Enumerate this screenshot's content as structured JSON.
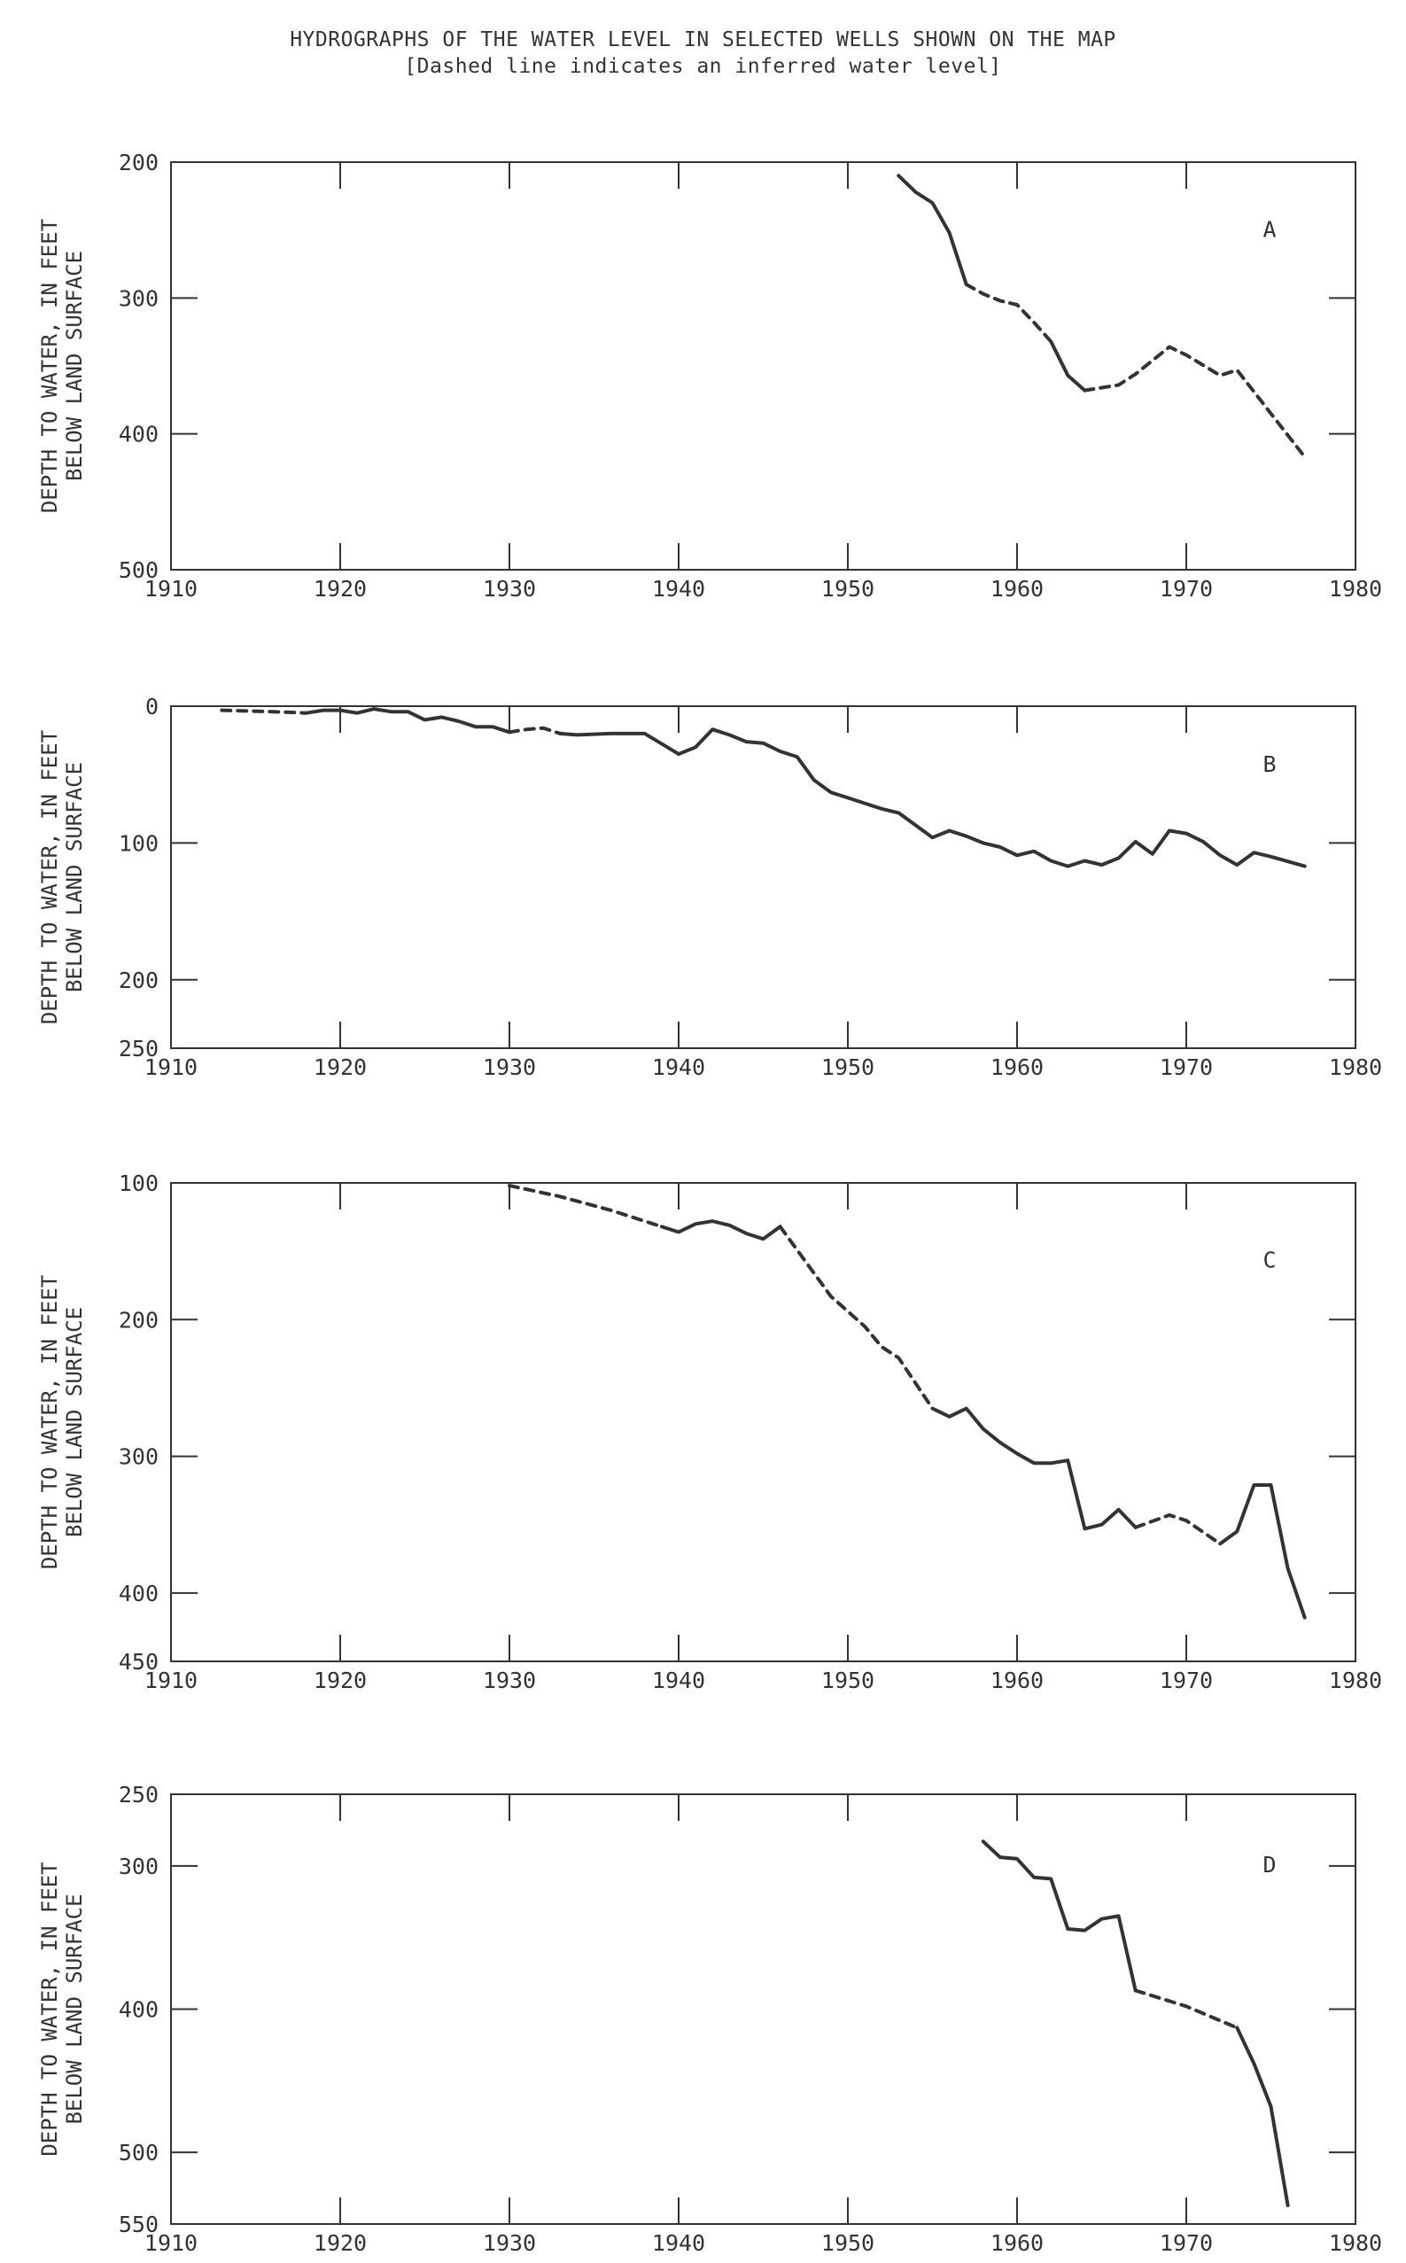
{
  "header": {
    "title": "HYDROGRAPHS OF THE WATER LEVEL IN SELECTED WELLS SHOWN ON THE MAP",
    "subtitle": "[Dashed line indicates an inferred water level]"
  },
  "chart_data": [
    {
      "type": "line",
      "label": "A",
      "ylabel": "DEPTH TO WATER, IN FEET BELOW LAND SURFACE",
      "xlim": [
        1910,
        1980
      ],
      "ylim": [
        500,
        200
      ],
      "yticks": [
        200,
        300,
        400,
        500
      ],
      "xticks": [
        1910,
        1920,
        1930,
        1940,
        1950,
        1960,
        1970,
        1980
      ],
      "segments": [
        {
          "style": "solid",
          "points": [
            [
              1953,
              210
            ],
            [
              1954,
              222
            ],
            [
              1955,
              230
            ],
            [
              1956,
              252
            ],
            [
              1957,
              290
            ]
          ]
        },
        {
          "style": "dashed",
          "points": [
            [
              1957,
              290
            ],
            [
              1958,
              297
            ],
            [
              1959,
              302
            ],
            [
              1960,
              305
            ],
            [
              1961,
              318
            ],
            [
              1962,
              332
            ]
          ]
        },
        {
          "style": "solid",
          "points": [
            [
              1962,
              332
            ],
            [
              1963,
              357
            ],
            [
              1964,
              368
            ]
          ]
        },
        {
          "style": "dashed",
          "points": [
            [
              1964,
              368
            ],
            [
              1966,
              364
            ],
            [
              1967,
              356
            ],
            [
              1969,
              336
            ],
            [
              1970,
              342
            ],
            [
              1972,
              357
            ],
            [
              1973,
              353
            ],
            [
              1975,
              385
            ],
            [
              1977,
              417
            ]
          ]
        }
      ]
    },
    {
      "type": "line",
      "label": "B",
      "ylabel": "DEPTH TO WATER, IN FEET BELOW LAND SURFACE",
      "xlim": [
        1910,
        1980
      ],
      "ylim": [
        250,
        0
      ],
      "yticks": [
        0,
        100,
        200,
        250
      ],
      "xticks": [
        1910,
        1920,
        1930,
        1940,
        1950,
        1960,
        1970,
        1980
      ],
      "segments": [
        {
          "style": "dashed",
          "points": [
            [
              1913,
              3
            ],
            [
              1916,
              4
            ],
            [
              1918,
              5
            ]
          ]
        },
        {
          "style": "solid",
          "points": [
            [
              1918,
              5
            ],
            [
              1919,
              3
            ],
            [
              1920,
              3
            ],
            [
              1921,
              5
            ],
            [
              1922,
              2
            ],
            [
              1923,
              4
            ],
            [
              1924,
              4
            ],
            [
              1925,
              10
            ],
            [
              1926,
              8
            ],
            [
              1927,
              11
            ],
            [
              1928,
              15
            ],
            [
              1929,
              15
            ],
            [
              1930,
              19
            ]
          ]
        },
        {
          "style": "dashed",
          "points": [
            [
              1930,
              19
            ],
            [
              1931,
              17
            ],
            [
              1932,
              16
            ],
            [
              1933,
              20
            ]
          ]
        },
        {
          "style": "solid",
          "points": [
            [
              1933,
              20
            ],
            [
              1934,
              21
            ],
            [
              1936,
              20
            ],
            [
              1938,
              20
            ],
            [
              1940,
              35
            ],
            [
              1941,
              30
            ],
            [
              1942,
              17
            ],
            [
              1943,
              21
            ],
            [
              1944,
              26
            ],
            [
              1945,
              27
            ],
            [
              1946,
              33
            ],
            [
              1947,
              37
            ],
            [
              1948,
              54
            ],
            [
              1949,
              63
            ],
            [
              1950,
              67
            ],
            [
              1951,
              71
            ],
            [
              1952,
              75
            ],
            [
              1953,
              78
            ],
            [
              1954,
              87
            ],
            [
              1955,
              96
            ],
            [
              1956,
              91
            ],
            [
              1957,
              95
            ],
            [
              1958,
              100
            ],
            [
              1959,
              103
            ],
            [
              1960,
              109
            ],
            [
              1961,
              106
            ],
            [
              1962,
              113
            ],
            [
              1963,
              117
            ],
            [
              1964,
              113
            ],
            [
              1965,
              116
            ],
            [
              1966,
              111
            ],
            [
              1967,
              99
            ],
            [
              1968,
              108
            ],
            [
              1969,
              91
            ],
            [
              1970,
              93
            ],
            [
              1971,
              99
            ],
            [
              1972,
              109
            ],
            [
              1973,
              116
            ],
            [
              1974,
              107
            ],
            [
              1975,
              110
            ],
            [
              1977,
              117
            ]
          ]
        }
      ]
    },
    {
      "type": "line",
      "label": "C",
      "ylabel": "DEPTH TO WATER, IN FEET BELOW LAND SURFACE",
      "xlim": [
        1910,
        1980
      ],
      "ylim": [
        450,
        100
      ],
      "yticks": [
        100,
        200,
        300,
        400,
        450
      ],
      "xticks": [
        1910,
        1920,
        1930,
        1940,
        1950,
        1960,
        1970,
        1980
      ],
      "segments": [
        {
          "style": "dashed",
          "points": [
            [
              1930,
              102
            ],
            [
              1933,
              110
            ],
            [
              1936,
              120
            ],
            [
              1939,
              132
            ]
          ]
        },
        {
          "style": "solid",
          "points": [
            [
              1939,
              132
            ],
            [
              1940,
              136
            ],
            [
              1941,
              130
            ],
            [
              1942,
              128
            ],
            [
              1943,
              131
            ],
            [
              1944,
              137
            ],
            [
              1945,
              141
            ],
            [
              1946,
              132
            ]
          ]
        },
        {
          "style": "dashed",
          "points": [
            [
              1946,
              132
            ],
            [
              1949,
              183
            ],
            [
              1951,
              205
            ],
            [
              1952,
              220
            ],
            [
              1953,
              228
            ],
            [
              1955,
              265
            ]
          ]
        },
        {
          "style": "solid",
          "points": [
            [
              1955,
              265
            ],
            [
              1956,
              271
            ],
            [
              1957,
              265
            ],
            [
              1958,
              280
            ],
            [
              1959,
              290
            ],
            [
              1960,
              298
            ],
            [
              1961,
              305
            ],
            [
              1962,
              305
            ],
            [
              1963,
              303
            ],
            [
              1964,
              353
            ],
            [
              1965,
              350
            ],
            [
              1966,
              339
            ],
            [
              1967,
              352
            ]
          ]
        },
        {
          "style": "dashed",
          "points": [
            [
              1967,
              352
            ],
            [
              1969,
              343
            ],
            [
              1970,
              347
            ],
            [
              1972,
              364
            ]
          ]
        },
        {
          "style": "solid",
          "points": [
            [
              1972,
              364
            ],
            [
              1973,
              355
            ],
            [
              1974,
              321
            ],
            [
              1975,
              321
            ],
            [
              1976,
              382
            ],
            [
              1977,
              418
            ]
          ]
        }
      ]
    },
    {
      "type": "line",
      "label": "D",
      "ylabel": "DEPTH TO WATER, IN FEET BELOW LAND SURFACE",
      "xlim": [
        1910,
        1980
      ],
      "ylim": [
        550,
        250
      ],
      "yticks": [
        250,
        300,
        400,
        500,
        550
      ],
      "xticks": [
        1910,
        1920,
        1930,
        1940,
        1950,
        1960,
        1970,
        1980
      ],
      "segments": [
        {
          "style": "solid",
          "points": [
            [
              1958,
              283
            ],
            [
              1959,
              294
            ],
            [
              1960,
              295
            ],
            [
              1961,
              308
            ],
            [
              1962,
              309
            ],
            [
              1963,
              344
            ],
            [
              1964,
              345
            ],
            [
              1965,
              337
            ],
            [
              1966,
              335
            ],
            [
              1967,
              387
            ]
          ]
        },
        {
          "style": "dashed",
          "points": [
            [
              1967,
              387
            ],
            [
              1970,
              398
            ],
            [
              1973,
              413
            ]
          ]
        },
        {
          "style": "solid",
          "points": [
            [
              1973,
              413
            ],
            [
              1974,
              438
            ],
            [
              1975,
              468
            ],
            [
              1976,
              537
            ]
          ]
        }
      ]
    }
  ]
}
